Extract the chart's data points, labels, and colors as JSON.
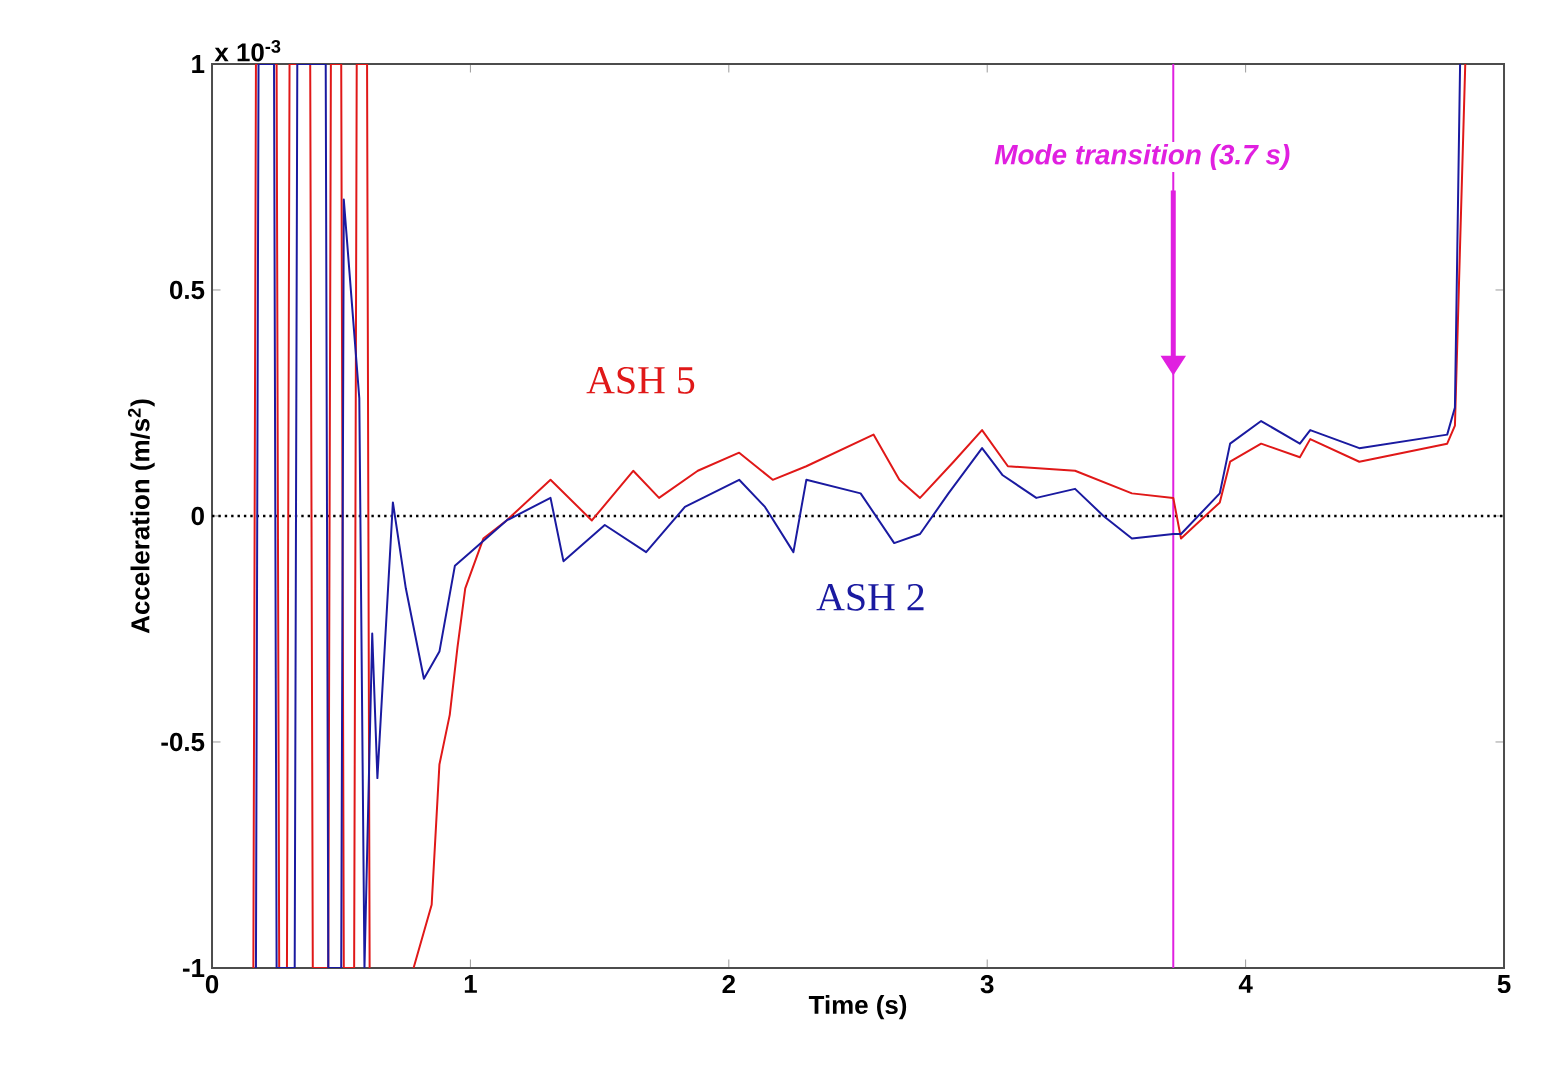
{
  "chart_data": {
    "type": "line",
    "xlabel": "Time (s)",
    "ylabel": "Acceleration (m/s$^{2}$)",
    "annotations": [
      "x 10$^{-3}$"
    ],
    "xlim": [
      0,
      5
    ],
    "ylim": [
      -1,
      1
    ],
    "xticks": [
      0,
      1,
      2,
      3,
      4,
      5
    ],
    "yticks": [
      -1,
      -0.5,
      0,
      0.5,
      1
    ],
    "ref_lines": [
      {
        "axis": "y",
        "value": 0,
        "color": "#000000",
        "line_style": "dotted"
      },
      {
        "axis": "x",
        "value": 3.72,
        "label": "Mode transition (3.7 s)",
        "color": "#e020e0"
      }
    ],
    "series": [
      {
        "name": "ASH 5",
        "color": "#e01818",
        "x": [
          0.16,
          0.17,
          0.25,
          0.26,
          0.29,
          0.3,
          0.38,
          0.39,
          0.45,
          0.46,
          0.5,
          0.51,
          0.55,
          0.56,
          0.6,
          0.61,
          0.62,
          0.78,
          0.85,
          0.88,
          0.92,
          0.95,
          0.98,
          1.05,
          1.14,
          1.31,
          1.47,
          1.63,
          1.73,
          1.88,
          2.04,
          2.17,
          2.3,
          2.56,
          2.66,
          2.74,
          2.87,
          2.98,
          3.08,
          3.34,
          3.56,
          3.72,
          3.75,
          3.9,
          3.94,
          4.06,
          4.21,
          4.25,
          4.44,
          4.78,
          4.81,
          4.85
        ],
        "values": [
          -1,
          1,
          1,
          -1,
          -1,
          1,
          1,
          -1,
          -1,
          1,
          1,
          -1,
          -1,
          1,
          1,
          -1,
          null,
          -1,
          -0.86,
          -0.55,
          -0.44,
          -0.29,
          -0.16,
          -0.05,
          -0.01,
          0.08,
          -0.01,
          0.1,
          0.04,
          0.1,
          0.14,
          0.08,
          0.11,
          0.18,
          0.08,
          0.04,
          0.12,
          0.19,
          0.11,
          0.1,
          0.05,
          0.04,
          -0.05,
          0.03,
          0.12,
          0.16,
          0.13,
          0.17,
          0.12,
          0.16,
          0.2,
          1
        ]
      },
      {
        "name": "ASH 2",
        "color": "#1a1aa0",
        "x": [
          0.17,
          0.18,
          0.24,
          0.25,
          0.32,
          0.33,
          0.44,
          0.45,
          0.5,
          0.51,
          0.57,
          0.59,
          0.62,
          0.64,
          0.7,
          0.75,
          0.82,
          0.88,
          0.94,
          1.0,
          1.14,
          1.31,
          1.36,
          1.52,
          1.68,
          1.83,
          2.04,
          2.14,
          2.25,
          2.3,
          2.51,
          2.64,
          2.74,
          2.85,
          2.98,
          3.06,
          3.19,
          3.34,
          3.45,
          3.56,
          3.72,
          3.75,
          3.9,
          3.94,
          4.06,
          4.21,
          4.25,
          4.44,
          4.78,
          4.81,
          4.83
        ],
        "values": [
          -1,
          1,
          1,
          -1,
          -1,
          1,
          1,
          -1,
          -1,
          0.7,
          0.26,
          -1,
          -0.26,
          -0.58,
          0.03,
          -0.16,
          -0.36,
          -0.3,
          -0.11,
          -0.08,
          -0.01,
          0.04,
          -0.1,
          -0.02,
          -0.08,
          0.02,
          0.08,
          0.02,
          -0.08,
          0.08,
          0.05,
          -0.06,
          -0.04,
          0.05,
          0.15,
          0.09,
          0.04,
          0.06,
          0.0,
          -0.05,
          -0.04,
          -0.04,
          0.05,
          0.16,
          0.21,
          0.16,
          0.19,
          0.15,
          0.18,
          0.24,
          1
        ]
      }
    ]
  }
}
